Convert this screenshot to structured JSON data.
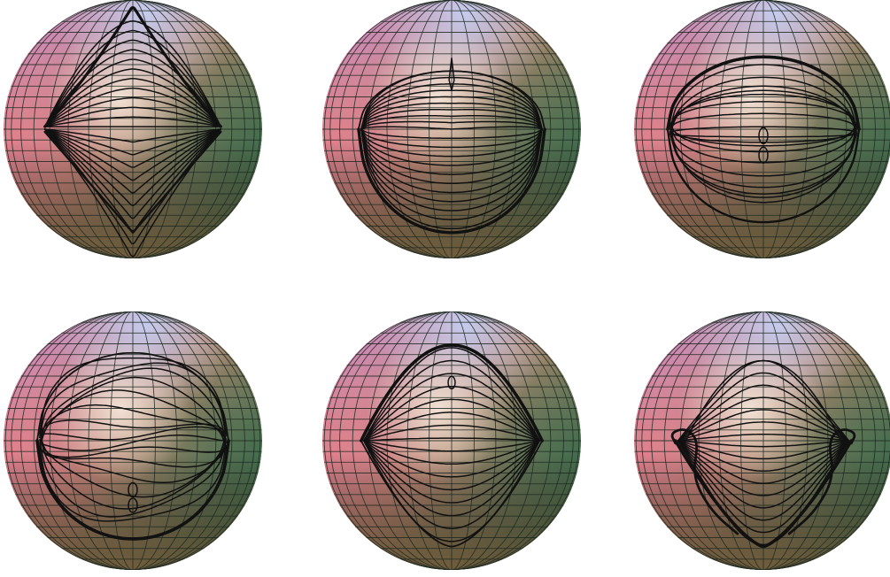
{
  "figure": {
    "panel_count": 6,
    "grid": {
      "rows": 2,
      "columns": 3
    },
    "sphere_colors": {
      "highlight": "#f4e6da",
      "top_blue": "#c6cff2",
      "upper_left_magenta": "#d78bd6",
      "left_red": "#e0808c",
      "lower_brown": "#6f5430",
      "right_green": "#3f6c4c",
      "grid_line": "#1e2a22",
      "curve": "#111111"
    },
    "panels": [
      {
        "name": "panel-1",
        "curve_family": "pointed-top-envelope-with-fan-below"
      },
      {
        "name": "panel-2",
        "curve_family": "rounded-envelope-with-top-cusp"
      },
      {
        "name": "panel-3",
        "curve_family": "oval-envelope-with-central-loops"
      },
      {
        "name": "panel-4",
        "curve_family": "envelope-with-bottom-loops"
      },
      {
        "name": "panel-5",
        "curve_family": "bell-envelope-with-top-loop"
      },
      {
        "name": "panel-6",
        "curve_family": "bell-envelope-with-side-lobes"
      }
    ]
  }
}
